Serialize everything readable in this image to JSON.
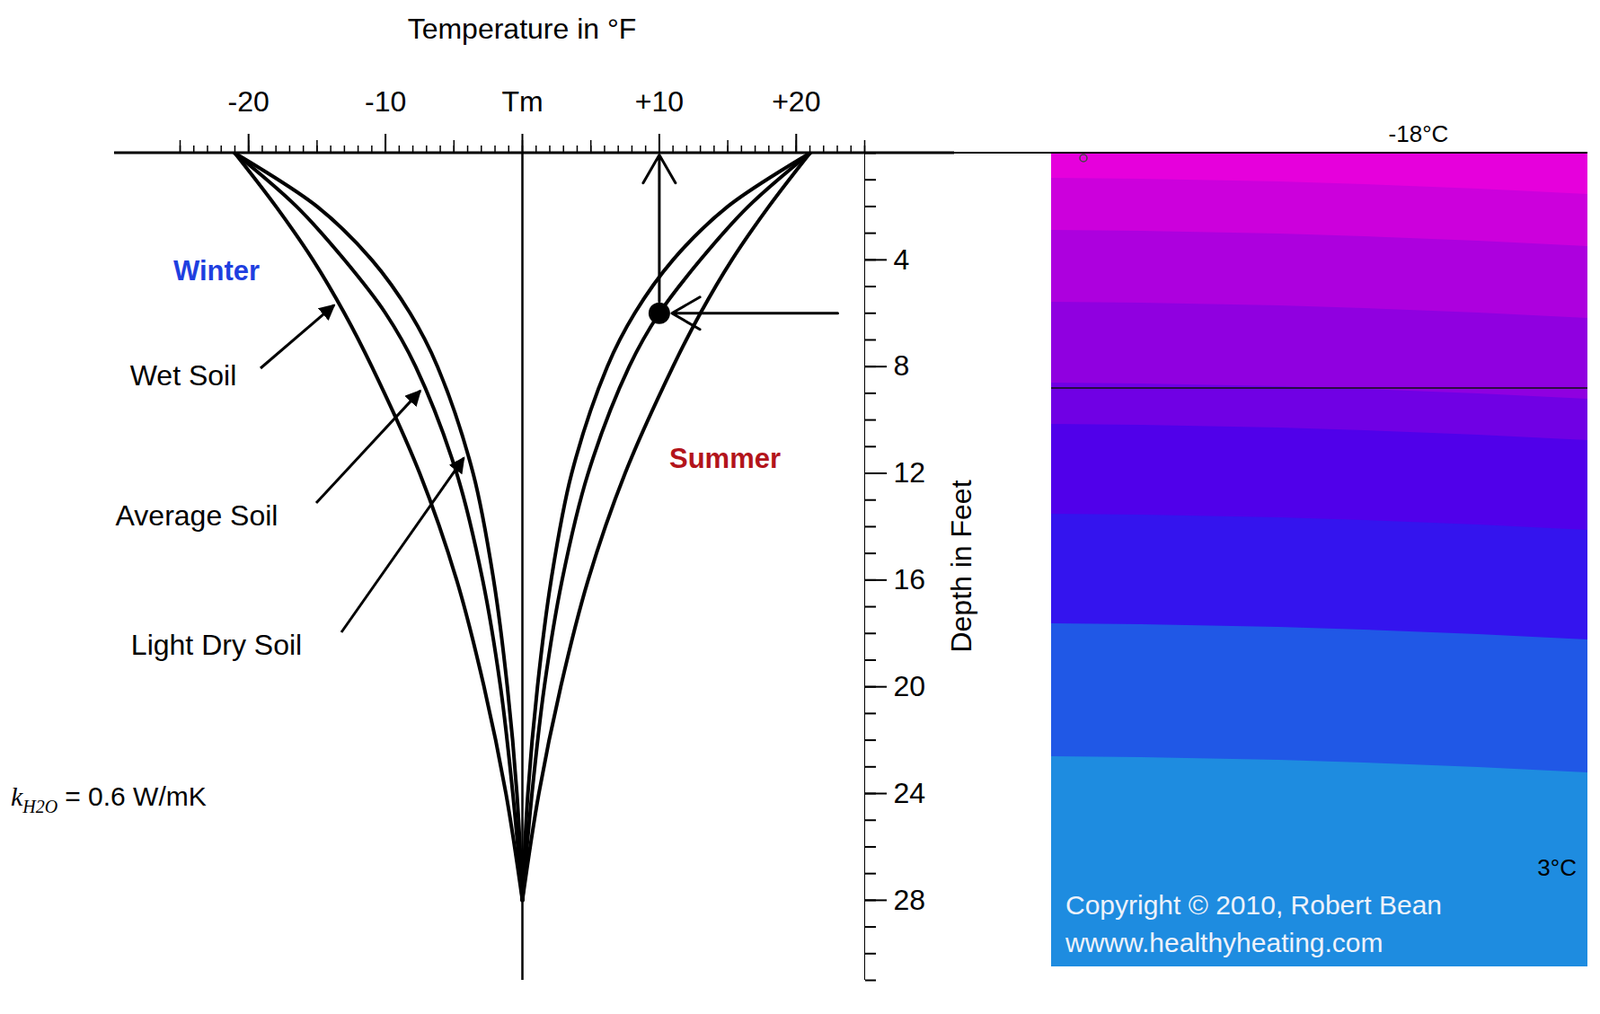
{
  "chart_data": {
    "type": "line",
    "x_label": "Temperature in °F",
    "y_label": "Depth in Feet",
    "depths": [
      0,
      2,
      4,
      6,
      8,
      12,
      16,
      20,
      24,
      28
    ],
    "series": [
      {
        "name": "Wet Soil",
        "color": "#000000",
        "winter": [
          -21,
          -18,
          -15.3,
          -13,
          -11,
          -7.5,
          -4.8,
          -2.8,
          -1.2,
          0
        ],
        "summer": [
          21,
          18,
          15.3,
          13,
          11,
          7.5,
          4.8,
          2.8,
          1.2,
          0
        ]
      },
      {
        "name": "Average Soil",
        "color": "#000000",
        "winter": [
          -21,
          -16.5,
          -13,
          -10,
          -7.8,
          -4.8,
          -2.9,
          -1.6,
          -0.7,
          0
        ],
        "summer": [
          21,
          16.5,
          13,
          10,
          7.8,
          4.8,
          2.9,
          1.6,
          0.7,
          0
        ]
      },
      {
        "name": "Light Dry Soil",
        "color": "#000000",
        "winter": [
          -21,
          -15,
          -11,
          -8.2,
          -6.2,
          -3.6,
          -2.1,
          -1.1,
          -0.4,
          0
        ],
        "summer": [
          21,
          15,
          11,
          8.2,
          6.2,
          3.6,
          2.1,
          1.1,
          0.4,
          0
        ]
      }
    ],
    "xlim": [
      -25,
      25
    ],
    "xticks": [
      -20,
      -10,
      {
        "value": 0,
        "label": "Tm"
      },
      {
        "value": 10,
        "label": "+10"
      },
      {
        "value": 20,
        "label": "+20"
      }
    ],
    "ylim": [
      0,
      31
    ],
    "yticks": [
      4,
      8,
      12,
      16,
      20,
      24,
      28
    ],
    "mean_temperature": 0,
    "marker_point": {
      "x": 10,
      "y": 6
    },
    "annotations": [
      {
        "text": "Winter",
        "color": "#1f3fe0"
      },
      {
        "text": "Summer",
        "color": "#b3141b"
      }
    ],
    "conductivity": {
      "symbol": "k",
      "subscript": "H2O",
      "text": "= 0.6 W/mK"
    },
    "panel": {
      "top_label": "-18°C",
      "bottom_label": "3°C",
      "copyright": "Copyright © 2010, Robert Bean",
      "url": "wwww.healthyheating.com",
      "colors": [
        "#e600dc",
        "#cc00dc",
        "#ad00de",
        "#9000e0",
        "#7000e4",
        "#5000ea",
        "#3414ee",
        "#2058e6",
        "#1e8ce0"
      ]
    },
    "grid": false
  }
}
